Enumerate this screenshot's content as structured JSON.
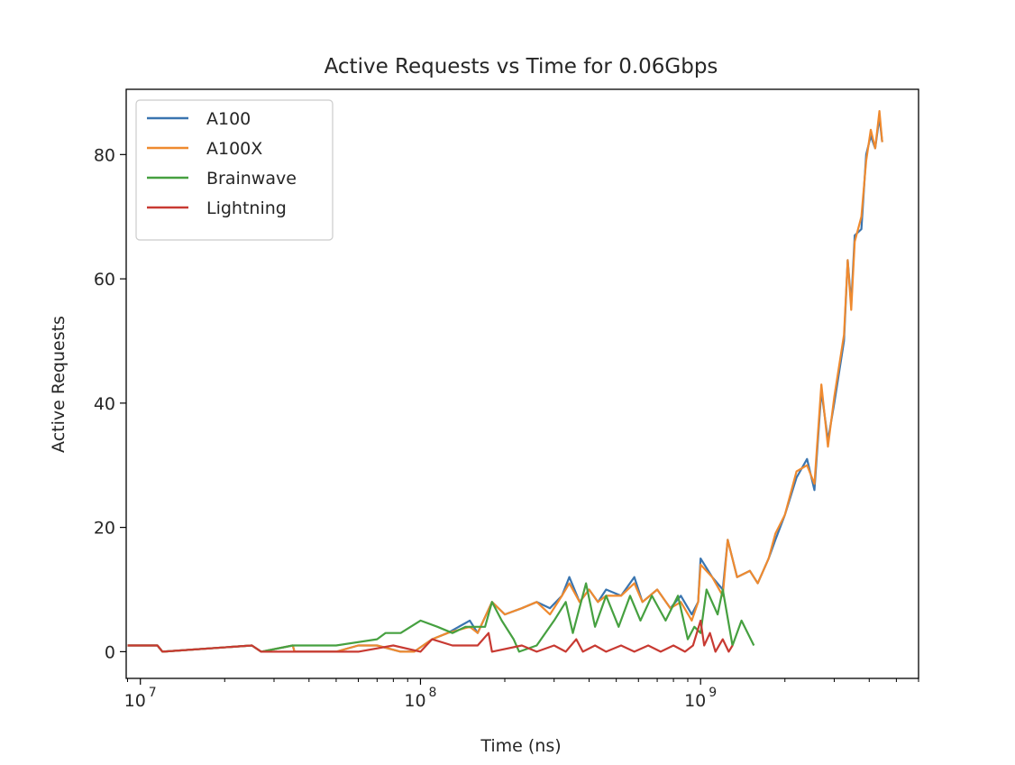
{
  "chart_data": {
    "type": "line",
    "title": "Active Requests vs Time for 0.06Gbps",
    "xlabel": "Time (ns)",
    "ylabel": "Active Requests",
    "xscale": "log",
    "xlim": [
      8900000,
      6000000000
    ],
    "ylim": [
      -4.3,
      90.5
    ],
    "grid": false,
    "legend_position": "top-left",
    "x_ticks": [
      {
        "base": "10",
        "exp": "7",
        "value": 10000000
      },
      {
        "base": "10",
        "exp": "8",
        "value": 100000000
      },
      {
        "base": "10",
        "exp": "9",
        "value": 1000000000
      }
    ],
    "y_ticks": [
      "0",
      "20",
      "40",
      "60",
      "80"
    ],
    "series": [
      {
        "name": "A100",
        "color": "#3a75b0",
        "points": [
          [
            9000000,
            1
          ],
          [
            11500000,
            1
          ],
          [
            12000000,
            0
          ],
          [
            25000000,
            1
          ],
          [
            27000000,
            0
          ],
          [
            35000000,
            1
          ],
          [
            35500000,
            0
          ],
          [
            50000000,
            0
          ],
          [
            60000000,
            1
          ],
          [
            70000000,
            1
          ],
          [
            85000000,
            0
          ],
          [
            95000000,
            0
          ],
          [
            110000000,
            2
          ],
          [
            125000000,
            3
          ],
          [
            150000000,
            5
          ],
          [
            160000000,
            3
          ],
          [
            180000000,
            8
          ],
          [
            200000000,
            6
          ],
          [
            230000000,
            7
          ],
          [
            260000000,
            8
          ],
          [
            290000000,
            7
          ],
          [
            320000000,
            9
          ],
          [
            340000000,
            12
          ],
          [
            370000000,
            8
          ],
          [
            400000000,
            10
          ],
          [
            430000000,
            8
          ],
          [
            460000000,
            10
          ],
          [
            520000000,
            9
          ],
          [
            580000000,
            12
          ],
          [
            620000000,
            8
          ],
          [
            700000000,
            10
          ],
          [
            780000000,
            7
          ],
          [
            850000000,
            9
          ],
          [
            930000000,
            6
          ],
          [
            980000000,
            8
          ],
          [
            1000000000,
            15
          ],
          [
            1100000000,
            12
          ],
          [
            1200000000,
            10
          ],
          [
            1250000000,
            18
          ],
          [
            1350000000,
            12
          ],
          [
            1500000000,
            13
          ],
          [
            1600000000,
            11
          ],
          [
            1750000000,
            15
          ],
          [
            1850000000,
            18
          ],
          [
            2000000000,
            22
          ],
          [
            2200000000,
            28
          ],
          [
            2400000000,
            31
          ],
          [
            2550000000,
            26
          ],
          [
            2700000000,
            42
          ],
          [
            2850000000,
            34
          ],
          [
            3000000000,
            40
          ],
          [
            3250000000,
            50
          ],
          [
            3350000000,
            63
          ],
          [
            3450000000,
            56
          ],
          [
            3550000000,
            67
          ],
          [
            3750000000,
            68
          ],
          [
            3900000000,
            80
          ],
          [
            4050000000,
            83
          ],
          [
            4200000000,
            81
          ],
          [
            4350000000,
            86
          ],
          [
            4450000000,
            82
          ]
        ]
      },
      {
        "name": "A100X",
        "color": "#ef8a2f",
        "points": [
          [
            9000000,
            1
          ],
          [
            11500000,
            1
          ],
          [
            12000000,
            0
          ],
          [
            25000000,
            1
          ],
          [
            27000000,
            0
          ],
          [
            35000000,
            1
          ],
          [
            35500000,
            0
          ],
          [
            50000000,
            0
          ],
          [
            60000000,
            1
          ],
          [
            70000000,
            1
          ],
          [
            85000000,
            0
          ],
          [
            95000000,
            0
          ],
          [
            110000000,
            2
          ],
          [
            125000000,
            3
          ],
          [
            150000000,
            4
          ],
          [
            160000000,
            3
          ],
          [
            180000000,
            8
          ],
          [
            200000000,
            6
          ],
          [
            230000000,
            7
          ],
          [
            260000000,
            8
          ],
          [
            290000000,
            6
          ],
          [
            320000000,
            9
          ],
          [
            340000000,
            11
          ],
          [
            370000000,
            8
          ],
          [
            400000000,
            10
          ],
          [
            430000000,
            8
          ],
          [
            460000000,
            9
          ],
          [
            520000000,
            9
          ],
          [
            580000000,
            11
          ],
          [
            620000000,
            8
          ],
          [
            700000000,
            10
          ],
          [
            780000000,
            7
          ],
          [
            850000000,
            8
          ],
          [
            930000000,
            5
          ],
          [
            980000000,
            8
          ],
          [
            1000000000,
            14
          ],
          [
            1100000000,
            12
          ],
          [
            1200000000,
            9
          ],
          [
            1250000000,
            18
          ],
          [
            1350000000,
            12
          ],
          [
            1500000000,
            13
          ],
          [
            1600000000,
            11
          ],
          [
            1750000000,
            15
          ],
          [
            1850000000,
            19
          ],
          [
            2000000000,
            22
          ],
          [
            2200000000,
            29
          ],
          [
            2400000000,
            30
          ],
          [
            2550000000,
            27
          ],
          [
            2700000000,
            43
          ],
          [
            2850000000,
            33
          ],
          [
            3000000000,
            41
          ],
          [
            3250000000,
            51
          ],
          [
            3350000000,
            63
          ],
          [
            3450000000,
            55
          ],
          [
            3550000000,
            66
          ],
          [
            3750000000,
            70
          ],
          [
            3900000000,
            79
          ],
          [
            4050000000,
            84
          ],
          [
            4200000000,
            81
          ],
          [
            4350000000,
            87
          ],
          [
            4450000000,
            82
          ]
        ]
      },
      {
        "name": "Brainwave",
        "color": "#46a040",
        "points": [
          [
            9000000,
            1
          ],
          [
            11500000,
            1
          ],
          [
            12000000,
            0
          ],
          [
            25000000,
            1
          ],
          [
            27000000,
            0
          ],
          [
            35000000,
            1
          ],
          [
            50000000,
            1
          ],
          [
            70000000,
            2
          ],
          [
            75000000,
            3
          ],
          [
            85000000,
            3
          ],
          [
            100000000,
            5
          ],
          [
            115000000,
            4
          ],
          [
            130000000,
            3
          ],
          [
            145000000,
            4
          ],
          [
            170000000,
            4
          ],
          [
            180000000,
            8
          ],
          [
            195000000,
            5
          ],
          [
            215000000,
            2
          ],
          [
            225000000,
            0
          ],
          [
            260000000,
            1
          ],
          [
            300000000,
            5
          ],
          [
            330000000,
            8
          ],
          [
            350000000,
            3
          ],
          [
            390000000,
            11
          ],
          [
            420000000,
            4
          ],
          [
            460000000,
            9
          ],
          [
            510000000,
            4
          ],
          [
            560000000,
            9
          ],
          [
            610000000,
            5
          ],
          [
            670000000,
            9
          ],
          [
            750000000,
            5
          ],
          [
            830000000,
            9
          ],
          [
            900000000,
            2
          ],
          [
            950000000,
            4
          ],
          [
            1000000000,
            3
          ],
          [
            1050000000,
            10
          ],
          [
            1150000000,
            6
          ],
          [
            1200000000,
            10
          ],
          [
            1300000000,
            1
          ],
          [
            1400000000,
            5
          ],
          [
            1550000000,
            1
          ]
        ]
      },
      {
        "name": "Lightning",
        "color": "#c83a32",
        "points": [
          [
            9000000,
            1
          ],
          [
            11500000,
            1
          ],
          [
            12000000,
            0
          ],
          [
            25000000,
            1
          ],
          [
            27000000,
            0
          ],
          [
            35000000,
            0
          ],
          [
            60000000,
            0
          ],
          [
            80000000,
            1
          ],
          [
            100000000,
            0
          ],
          [
            110000000,
            2
          ],
          [
            130000000,
            1
          ],
          [
            160000000,
            1
          ],
          [
            175000000,
            3
          ],
          [
            180000000,
            0
          ],
          [
            230000000,
            1
          ],
          [
            260000000,
            0
          ],
          [
            300000000,
            1
          ],
          [
            330000000,
            0
          ],
          [
            360000000,
            2
          ],
          [
            380000000,
            0
          ],
          [
            420000000,
            1
          ],
          [
            460000000,
            0
          ],
          [
            520000000,
            1
          ],
          [
            580000000,
            0
          ],
          [
            650000000,
            1
          ],
          [
            720000000,
            0
          ],
          [
            800000000,
            1
          ],
          [
            880000000,
            0
          ],
          [
            940000000,
            1
          ],
          [
            1000000000,
            5
          ],
          [
            1030000000,
            1
          ],
          [
            1080000000,
            3
          ],
          [
            1130000000,
            0
          ],
          [
            1200000000,
            2
          ],
          [
            1260000000,
            0
          ],
          [
            1300000000,
            1
          ]
        ]
      }
    ]
  }
}
